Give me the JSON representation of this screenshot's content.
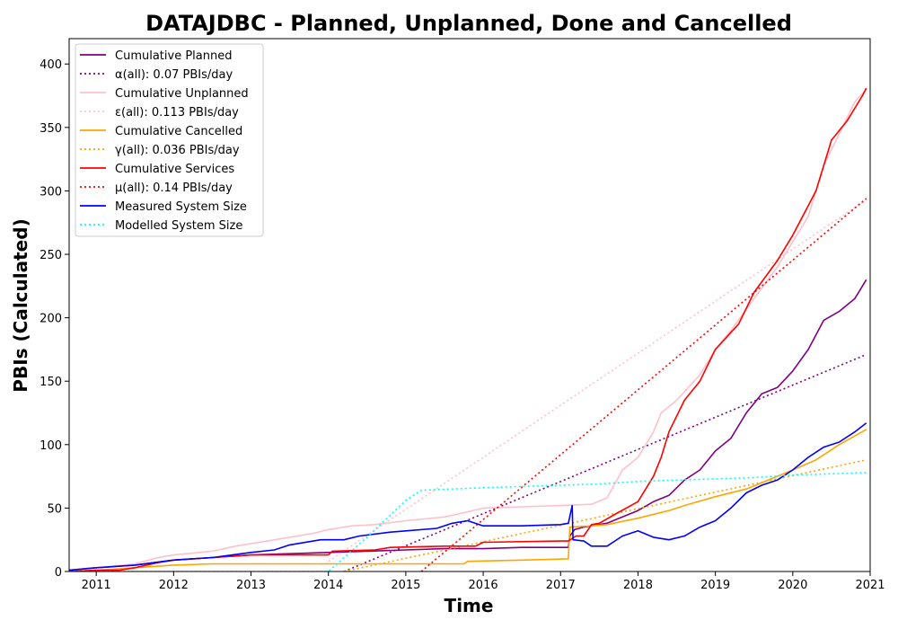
{
  "chart_data": {
    "type": "line",
    "title": "DATAJDBC - Planned, Unplanned, Done  and Cancelled",
    "xlabel": "Time",
    "ylabel": "PBIs (Calculated)",
    "xlim": [
      2010.65,
      2021.0
    ],
    "ylim": [
      0,
      420
    ],
    "xticks": [
      2011,
      2012,
      2013,
      2014,
      2015,
      2016,
      2017,
      2018,
      2019,
      2020,
      2021
    ],
    "yticks": [
      0,
      50,
      100,
      150,
      200,
      250,
      300,
      350,
      400
    ],
    "legend_position": "upper left",
    "series": [
      {
        "name": "Cumulative Planned",
        "color": "#800080",
        "style": "solid",
        "points": [
          [
            2010.65,
            1
          ],
          [
            2011.0,
            3
          ],
          [
            2011.5,
            5
          ],
          [
            2012.0,
            9
          ],
          [
            2012.5,
            11
          ],
          [
            2013.0,
            13
          ],
          [
            2013.5,
            14
          ],
          [
            2014.0,
            15
          ],
          [
            2014.5,
            16
          ],
          [
            2015.0,
            17
          ],
          [
            2015.5,
            18
          ],
          [
            2016.0,
            18
          ],
          [
            2016.5,
            19
          ],
          [
            2017.0,
            19
          ],
          [
            2017.1,
            19
          ],
          [
            2017.12,
            28
          ],
          [
            2017.18,
            33
          ],
          [
            2017.3,
            35
          ],
          [
            2017.6,
            38
          ],
          [
            2018.0,
            48
          ],
          [
            2018.2,
            55
          ],
          [
            2018.4,
            60
          ],
          [
            2018.6,
            72
          ],
          [
            2018.8,
            80
          ],
          [
            2019.0,
            95
          ],
          [
            2019.2,
            105
          ],
          [
            2019.4,
            125
          ],
          [
            2019.6,
            140
          ],
          [
            2019.8,
            145
          ],
          [
            2020.0,
            158
          ],
          [
            2020.2,
            175
          ],
          [
            2020.4,
            198
          ],
          [
            2020.6,
            205
          ],
          [
            2020.8,
            215
          ],
          [
            2020.95,
            230
          ]
        ]
      },
      {
        "name": "α(all): 0.07 PBIs/day",
        "color": "#800080",
        "style": "dotted",
        "points": [
          [
            2014.2,
            0
          ],
          [
            2020.95,
            171
          ]
        ]
      },
      {
        "name": "Cumulative Unplanned",
        "color": "#ffc0cb",
        "style": "solid",
        "points": [
          [
            2010.65,
            1
          ],
          [
            2011.0,
            3
          ],
          [
            2011.5,
            6
          ],
          [
            2011.8,
            11
          ],
          [
            2012.0,
            13
          ],
          [
            2012.5,
            16
          ],
          [
            2012.8,
            20
          ],
          [
            2013.0,
            22
          ],
          [
            2013.5,
            27
          ],
          [
            2013.8,
            30
          ],
          [
            2014.0,
            33
          ],
          [
            2014.3,
            36
          ],
          [
            2014.6,
            37
          ],
          [
            2015.0,
            40
          ],
          [
            2015.5,
            43
          ],
          [
            2015.8,
            47
          ],
          [
            2016.0,
            50
          ],
          [
            2016.5,
            51
          ],
          [
            2017.0,
            52
          ],
          [
            2017.4,
            53
          ],
          [
            2017.6,
            58
          ],
          [
            2017.8,
            80
          ],
          [
            2018.0,
            90
          ],
          [
            2018.2,
            110
          ],
          [
            2018.3,
            125
          ],
          [
            2018.5,
            135
          ],
          [
            2018.8,
            155
          ],
          [
            2019.0,
            175
          ],
          [
            2019.2,
            190
          ],
          [
            2019.5,
            215
          ],
          [
            2019.8,
            240
          ],
          [
            2020.0,
            260
          ],
          [
            2020.2,
            280
          ],
          [
            2020.4,
            320
          ],
          [
            2020.6,
            345
          ],
          [
            2020.8,
            370
          ],
          [
            2020.95,
            380
          ]
        ]
      },
      {
        "name": "ε(all): 0.113 PBIs/day",
        "color": "#ffc0cb",
        "style": "dotted",
        "points": [
          [
            2014.0,
            8
          ],
          [
            2020.95,
            293
          ]
        ]
      },
      {
        "name": "Cumulative Cancelled",
        "color": "#ffa500",
        "style": "solid",
        "points": [
          [
            2010.65,
            0
          ],
          [
            2011.0,
            1
          ],
          [
            2011.5,
            3
          ],
          [
            2012.0,
            5
          ],
          [
            2012.5,
            6
          ],
          [
            2013.0,
            6
          ],
          [
            2014.0,
            6
          ],
          [
            2015.0,
            6
          ],
          [
            2015.75,
            6
          ],
          [
            2015.8,
            8
          ],
          [
            2016.5,
            9
          ],
          [
            2017.1,
            10
          ],
          [
            2017.12,
            35
          ],
          [
            2017.4,
            36
          ],
          [
            2017.6,
            37
          ],
          [
            2018.0,
            42
          ],
          [
            2018.4,
            48
          ],
          [
            2018.6,
            52
          ],
          [
            2019.0,
            59
          ],
          [
            2019.4,
            65
          ],
          [
            2019.8,
            75
          ],
          [
            2020.0,
            80
          ],
          [
            2020.3,
            88
          ],
          [
            2020.6,
            100
          ],
          [
            2020.95,
            112
          ]
        ]
      },
      {
        "name": "γ(all): 0.036 PBIs/day",
        "color": "#ffa500",
        "style": "dotted",
        "points": [
          [
            2014.2,
            0
          ],
          [
            2020.95,
            88
          ]
        ]
      },
      {
        "name": "Cumulative Services",
        "color": "#ff0000",
        "style": "solid",
        "points": [
          [
            2010.65,
            0
          ],
          [
            2011.0,
            1
          ],
          [
            2011.3,
            1
          ],
          [
            2011.5,
            3
          ],
          [
            2011.8,
            7
          ],
          [
            2012.0,
            9
          ],
          [
            2012.5,
            11
          ],
          [
            2013.0,
            13
          ],
          [
            2014.0,
            13
          ],
          [
            2014.05,
            16
          ],
          [
            2014.6,
            17
          ],
          [
            2014.8,
            19
          ],
          [
            2015.5,
            20
          ],
          [
            2015.9,
            20
          ],
          [
            2016.0,
            23
          ],
          [
            2017.0,
            24
          ],
          [
            2017.1,
            24
          ],
          [
            2017.2,
            28
          ],
          [
            2017.3,
            28
          ],
          [
            2017.4,
            37
          ],
          [
            2017.5,
            38
          ],
          [
            2017.7,
            45
          ],
          [
            2018.0,
            55
          ],
          [
            2018.2,
            75
          ],
          [
            2018.3,
            90
          ],
          [
            2018.4,
            110
          ],
          [
            2018.6,
            135
          ],
          [
            2018.8,
            150
          ],
          [
            2019.0,
            175
          ],
          [
            2019.3,
            195
          ],
          [
            2019.5,
            220
          ],
          [
            2019.8,
            245
          ],
          [
            2020.0,
            265
          ],
          [
            2020.3,
            300
          ],
          [
            2020.5,
            340
          ],
          [
            2020.7,
            355
          ],
          [
            2020.9,
            375
          ],
          [
            2020.95,
            381
          ]
        ]
      },
      {
        "name": "μ(all): 0.14 PBIs/day",
        "color": "#ff0000",
        "style": "dotted",
        "points": [
          [
            2015.2,
            0
          ],
          [
            2020.95,
            294
          ]
        ]
      },
      {
        "name": "Measured System Size",
        "color": "#0000ff",
        "style": "solid",
        "points": [
          [
            2010.65,
            1
          ],
          [
            2011.0,
            3
          ],
          [
            2011.5,
            5
          ],
          [
            2012.0,
            9
          ],
          [
            2012.5,
            11
          ],
          [
            2013.0,
            15
          ],
          [
            2013.3,
            17
          ],
          [
            2013.5,
            21
          ],
          [
            2013.9,
            25
          ],
          [
            2014.2,
            25
          ],
          [
            2014.4,
            28
          ],
          [
            2014.8,
            31
          ],
          [
            2015.0,
            32
          ],
          [
            2015.4,
            34
          ],
          [
            2015.6,
            38
          ],
          [
            2015.8,
            40
          ],
          [
            2016.0,
            36
          ],
          [
            2016.5,
            36
          ],
          [
            2017.0,
            37
          ],
          [
            2017.1,
            38
          ],
          [
            2017.15,
            52
          ],
          [
            2017.16,
            25
          ],
          [
            2017.3,
            24
          ],
          [
            2017.4,
            20
          ],
          [
            2017.6,
            20
          ],
          [
            2017.8,
            28
          ],
          [
            2018.0,
            32
          ],
          [
            2018.2,
            27
          ],
          [
            2018.4,
            25
          ],
          [
            2018.6,
            28
          ],
          [
            2018.8,
            35
          ],
          [
            2019.0,
            40
          ],
          [
            2019.2,
            50
          ],
          [
            2019.4,
            62
          ],
          [
            2019.6,
            68
          ],
          [
            2019.8,
            72
          ],
          [
            2020.0,
            80
          ],
          [
            2020.2,
            90
          ],
          [
            2020.4,
            98
          ],
          [
            2020.6,
            102
          ],
          [
            2020.8,
            110
          ],
          [
            2020.95,
            117
          ]
        ]
      },
      {
        "name": "Modelled System Size",
        "color": "#00ffff",
        "style": "dotted",
        "points": [
          [
            2010.65,
            0
          ],
          [
            2014.0,
            0
          ],
          [
            2014.5,
            27
          ],
          [
            2015.0,
            56
          ],
          [
            2015.2,
            64
          ],
          [
            2015.6,
            65
          ],
          [
            2016.0,
            66
          ],
          [
            2016.5,
            67
          ],
          [
            2017.0,
            68
          ],
          [
            2017.5,
            69
          ],
          [
            2018.0,
            71
          ],
          [
            2018.5,
            72
          ],
          [
            2019.0,
            73
          ],
          [
            2019.5,
            74
          ],
          [
            2020.0,
            76
          ],
          [
            2020.5,
            77
          ],
          [
            2020.95,
            78
          ]
        ]
      }
    ]
  }
}
